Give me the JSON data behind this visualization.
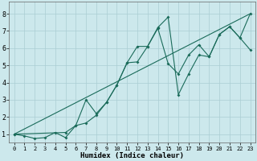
{
  "xlabel": "Humidex (Indice chaleur)",
  "bg_color": "#cce8ec",
  "grid_color": "#aacdd3",
  "line_color": "#1a6b5a",
  "xlim": [
    -0.5,
    23.5
  ],
  "ylim": [
    0.5,
    8.7
  ],
  "xticks": [
    0,
    1,
    2,
    3,
    4,
    5,
    6,
    7,
    8,
    9,
    10,
    11,
    12,
    13,
    14,
    15,
    16,
    17,
    18,
    19,
    20,
    21,
    22,
    23
  ],
  "yticks": [
    1,
    2,
    3,
    4,
    5,
    6,
    7,
    8
  ],
  "line1_x": [
    0,
    1,
    2,
    3,
    4,
    5,
    6,
    7,
    8,
    9,
    10,
    11,
    12,
    13,
    14,
    15,
    16,
    17,
    18,
    19,
    20,
    21,
    22,
    23
  ],
  "line1_y": [
    1.0,
    0.9,
    0.75,
    0.8,
    1.1,
    0.8,
    1.5,
    1.65,
    2.1,
    2.85,
    3.85,
    5.15,
    6.1,
    6.1,
    7.2,
    7.8,
    3.3,
    4.5,
    5.6,
    5.5,
    6.8,
    7.25,
    6.6,
    5.9
  ],
  "line2_x": [
    0,
    5,
    6,
    7,
    8,
    9,
    10,
    11,
    12,
    13,
    14,
    15,
    16,
    17,
    18,
    19,
    20,
    21,
    22,
    23
  ],
  "line2_y": [
    1.0,
    1.1,
    1.5,
    3.0,
    2.2,
    2.85,
    3.85,
    5.15,
    5.2,
    6.1,
    7.15,
    5.1,
    4.5,
    5.6,
    6.2,
    5.5,
    6.8,
    7.25,
    6.6,
    8.0
  ],
  "line3_x": [
    0,
    23
  ],
  "line3_y": [
    1.0,
    8.0
  ]
}
